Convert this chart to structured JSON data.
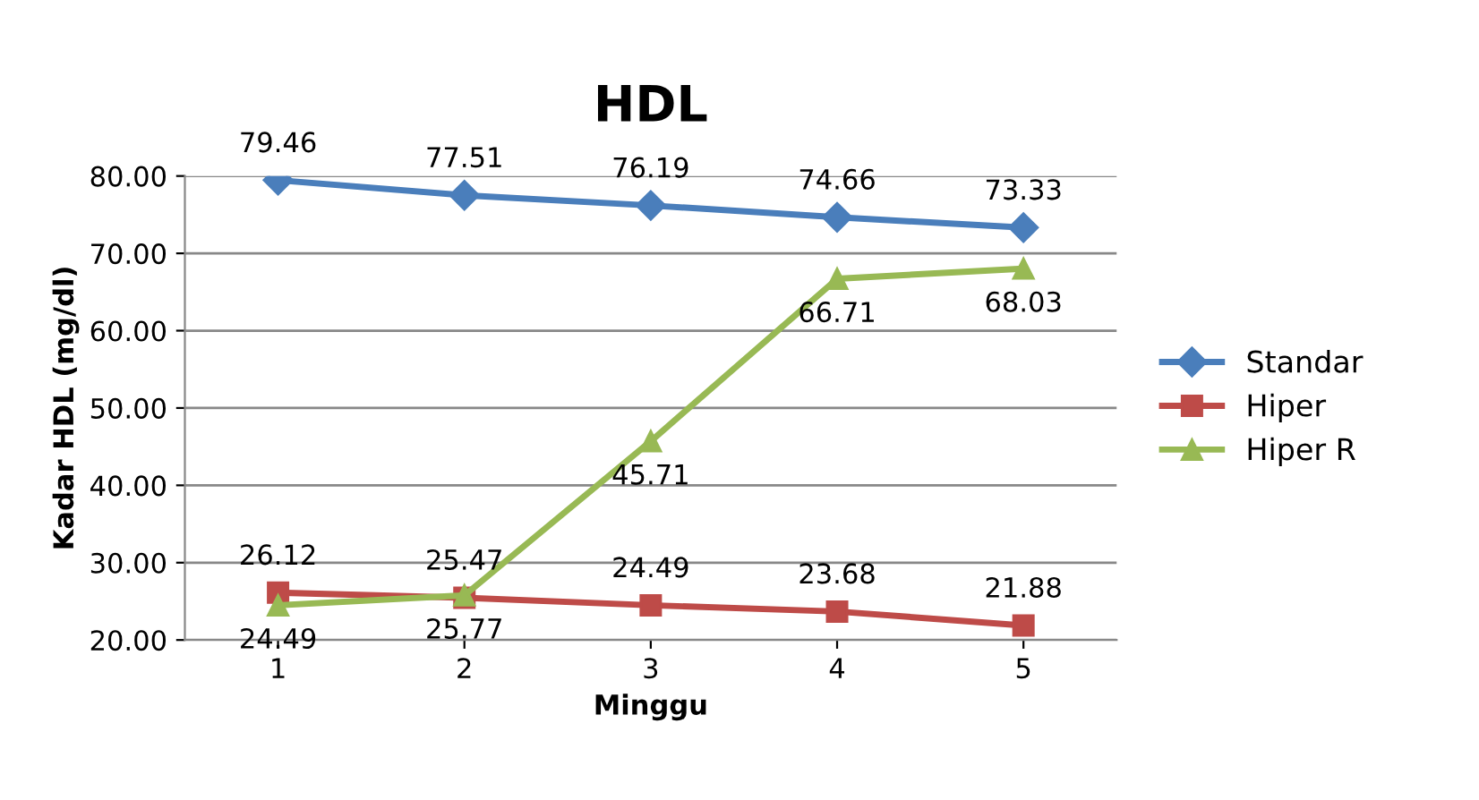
{
  "chart_data": {
    "type": "line",
    "title": "HDL",
    "xlabel": "Minggu",
    "ylabel": "Kadar HDL (mg/dl)",
    "categories": [
      "1",
      "2",
      "3",
      "4",
      "5"
    ],
    "series": [
      {
        "name": "Standar",
        "color": "#4a7ebb",
        "marker": "diamond",
        "values": [
          79.46,
          77.51,
          76.19,
          74.66,
          73.33
        ]
      },
      {
        "name": "Hiper",
        "color": "#be4b48",
        "marker": "square",
        "values": [
          26.12,
          25.47,
          24.49,
          23.68,
          21.88
        ]
      },
      {
        "name": "Hiper R",
        "color": "#98b954",
        "marker": "triangle",
        "values": [
          24.49,
          25.77,
          45.71,
          66.71,
          68.03
        ]
      }
    ],
    "ylim": [
      20,
      80
    ],
    "yticks": [
      {
        "value": 20,
        "label": "20.00"
      },
      {
        "value": 30,
        "label": "30.00"
      },
      {
        "value": 40,
        "label": "40.00"
      },
      {
        "value": 50,
        "label": "50.00"
      },
      {
        "value": 60,
        "label": "60.00"
      },
      {
        "value": 70,
        "label": "70.00"
      },
      {
        "value": 80,
        "label": "80.00"
      }
    ],
    "grid": "y",
    "legend": "right",
    "data_labels": true,
    "line_style": "solid"
  }
}
